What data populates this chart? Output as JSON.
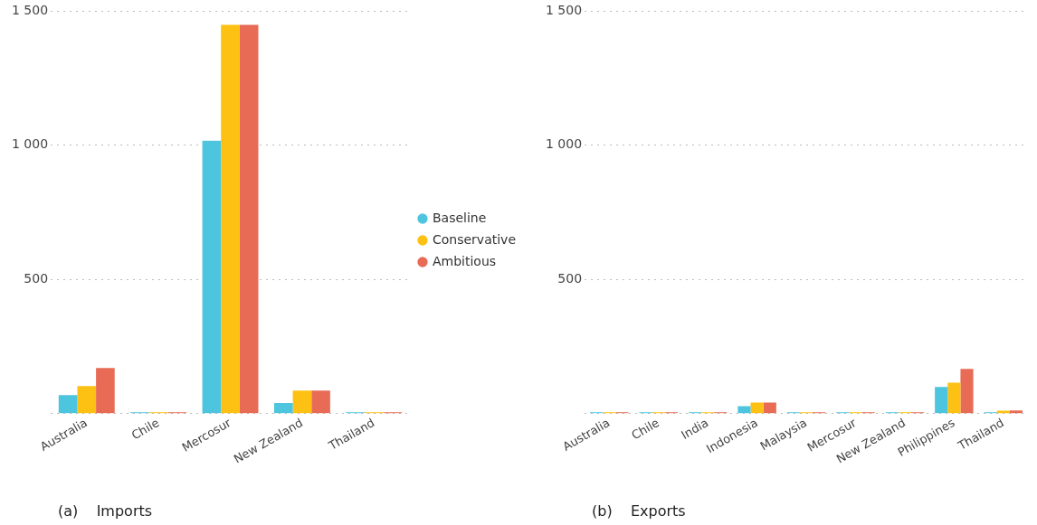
{
  "chart_data": [
    {
      "type": "bar",
      "annotations": [
        "(a)    Imports"
      ],
      "categories": [
        "Australia",
        "Chile",
        "Mercosur",
        "New Zealand",
        "Thailand"
      ],
      "series": [
        {
          "name": "Baseline",
          "color": "#4ec5de",
          "values": [
            69,
            5,
            1016,
            40,
            5
          ]
        },
        {
          "name": "Conservative",
          "color": "#fdc113",
          "values": [
            103,
            5,
            1448,
            86,
            5
          ]
        },
        {
          "name": "Ambitious",
          "color": "#e86b56",
          "values": [
            170,
            5,
            1448,
            86,
            5
          ]
        }
      ],
      "ylim": [
        0,
        1500
      ],
      "yticks": [
        {
          "value": 0,
          "label": null
        },
        {
          "value": 500,
          "label": "500"
        },
        {
          "value": 1000,
          "label": "1 000"
        },
        {
          "value": 1500,
          "label": "1 500"
        }
      ],
      "grid": "y",
      "legend": "right"
    },
    {
      "type": "bar",
      "annotations": [
        "(b)    Exports"
      ],
      "categories": [
        "Australia",
        "Chile",
        "India",
        "Indonesia",
        "Malaysia",
        "Mercosur",
        "New Zealand",
        "Philippines",
        "Thailand"
      ],
      "series": [
        {
          "color": "#4ec5de",
          "values": [
            5,
            5,
            5,
            28,
            5,
            5,
            5,
            99,
            5
          ]
        },
        {
          "color": "#fdc113",
          "values": [
            5,
            5,
            5,
            41,
            5,
            5,
            5,
            115,
            11
          ]
        },
        {
          "color": "#e86b56",
          "values": [
            5,
            5,
            5,
            41,
            5,
            5,
            5,
            167,
            12
          ]
        }
      ],
      "ylim": [
        0,
        1500
      ],
      "yticks": [
        {
          "value": 0,
          "label": null
        },
        {
          "value": 500,
          "label": "500"
        },
        {
          "value": 1000,
          "label": "1 000"
        },
        {
          "value": 1500,
          "label": "1 500"
        }
      ],
      "grid": "y"
    }
  ]
}
